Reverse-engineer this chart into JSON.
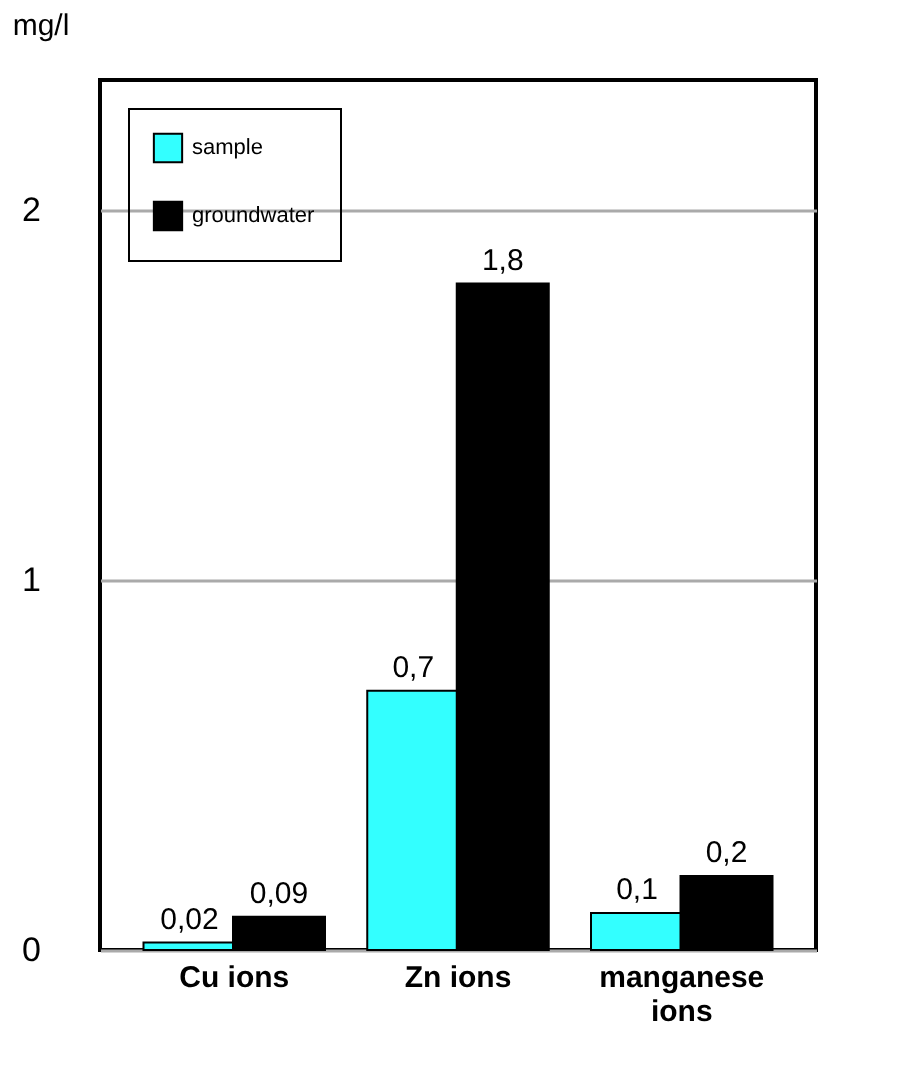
{
  "chart_data": {
    "type": "bar",
    "ylabel": "mg/l",
    "categories": [
      "Cu ions",
      "Zn ions",
      "manganese ions"
    ],
    "series": [
      {
        "name": "sample",
        "color": "#33ffff",
        "values": [
          0.02,
          0.7,
          0.1
        ],
        "value_labels": [
          "0,02",
          "0,7",
          "0,1"
        ]
      },
      {
        "name": "groundwater",
        "color": "#000000",
        "values": [
          0.09,
          1.8,
          0.2
        ],
        "value_labels": [
          "0,09",
          "1,8",
          "0,2"
        ]
      }
    ],
    "ylim": [
      0,
      2.35
    ],
    "yticks": [
      0,
      1,
      2
    ],
    "grid": "y",
    "legend": "top left"
  }
}
